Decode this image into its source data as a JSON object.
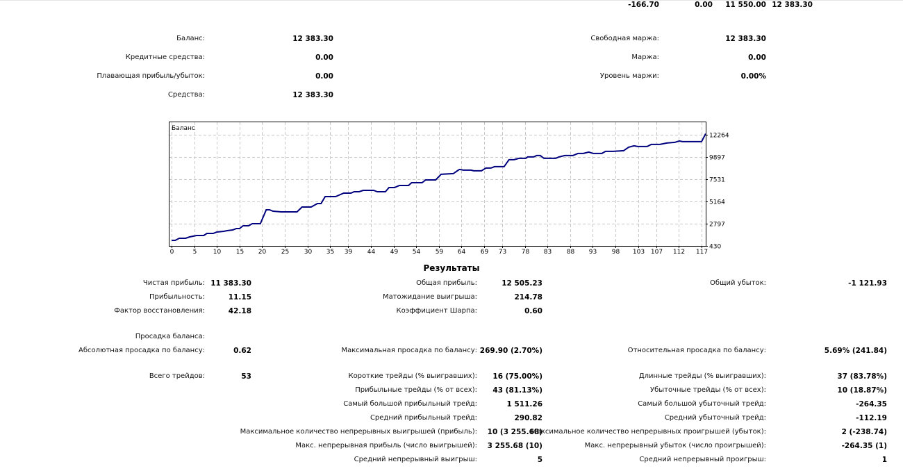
{
  "top_row": [
    "-166.70",
    "0.00",
    "11 550.00",
    "12 383.30"
  ],
  "account": {
    "left": [
      {
        "label": "Баланс:",
        "value": "12 383.30"
      },
      {
        "label": "Кредитные средства:",
        "value": "0.00"
      },
      {
        "label": "Плавающая прибыль/убыток:",
        "value": "0.00"
      },
      {
        "label": "Средства:",
        "value": "12 383.30"
      }
    ],
    "right": [
      {
        "label": "Свободная маржа:",
        "value": "12 383.30"
      },
      {
        "label": "Маржа:",
        "value": "0.00"
      },
      {
        "label": "Уровень маржи:",
        "value": "0.00%"
      }
    ]
  },
  "chart_data": {
    "type": "line",
    "title": "Баланс",
    "xlabel": "",
    "ylabel": "",
    "x_ticks": [
      0,
      5,
      10,
      15,
      20,
      25,
      30,
      35,
      39,
      44,
      49,
      54,
      59,
      64,
      69,
      73,
      78,
      83,
      88,
      93,
      98,
      103,
      107,
      112,
      117
    ],
    "y_ticks": [
      430,
      2797,
      5164,
      7531,
      9897,
      12264
    ],
    "xlim": [
      0,
      118
    ],
    "ylim": [
      430,
      12264
    ],
    "grid": true,
    "line_color": "#00007f",
    "series": [
      {
        "name": "Баланс",
        "points": [
          [
            0,
            1022
          ],
          [
            0.8,
            1022
          ],
          [
            1.7,
            1244
          ],
          [
            3.1,
            1244
          ],
          [
            4.0,
            1392
          ],
          [
            5.5,
            1540
          ],
          [
            7.1,
            1540
          ],
          [
            7.8,
            1762
          ],
          [
            9.2,
            1762
          ],
          [
            10.0,
            1910
          ],
          [
            11.5,
            1984
          ],
          [
            12.3,
            2058
          ],
          [
            13.5,
            2132
          ],
          [
            14.3,
            2280
          ],
          [
            15.0,
            2280
          ],
          [
            15.8,
            2576
          ],
          [
            17.0,
            2576
          ],
          [
            17.8,
            2798
          ],
          [
            19.6,
            2798
          ],
          [
            20.9,
            4278
          ],
          [
            21.6,
            4278
          ],
          [
            22.4,
            4130
          ],
          [
            24.2,
            4056
          ],
          [
            27.7,
            4056
          ],
          [
            28.8,
            4574
          ],
          [
            30.8,
            4574
          ],
          [
            32.2,
            4944
          ],
          [
            33.0,
            4944
          ],
          [
            33.9,
            5684
          ],
          [
            36.2,
            5684
          ],
          [
            38.0,
            6054
          ],
          [
            39.6,
            6054
          ],
          [
            40.3,
            6202
          ],
          [
            41.4,
            6202
          ],
          [
            42.3,
            6350
          ],
          [
            44.6,
            6350
          ],
          [
            45.4,
            6202
          ],
          [
            47.2,
            6202
          ],
          [
            48.0,
            6646
          ],
          [
            49.2,
            6646
          ],
          [
            50.3,
            6868
          ],
          [
            52.3,
            6868
          ],
          [
            53.0,
            7164
          ],
          [
            55.3,
            7164
          ],
          [
            56.1,
            7460
          ],
          [
            58.3,
            7460
          ],
          [
            59.5,
            8052
          ],
          [
            62.2,
            8126
          ],
          [
            63.3,
            8496
          ],
          [
            63.6,
            8570
          ],
          [
            64.4,
            8496
          ],
          [
            66.1,
            8496
          ],
          [
            66.7,
            8422
          ],
          [
            68.4,
            8422
          ],
          [
            69.4,
            8718
          ],
          [
            70.5,
            8718
          ],
          [
            71.3,
            8866
          ],
          [
            73.4,
            8866
          ],
          [
            74.5,
            9606
          ],
          [
            75.6,
            9606
          ],
          [
            76.7,
            9754
          ],
          [
            78.2,
            9754
          ],
          [
            78.6,
            9902
          ],
          [
            79.9,
            9902
          ],
          [
            80.6,
            10050
          ],
          [
            81.4,
            10050
          ],
          [
            82.2,
            9754
          ],
          [
            84.8,
            9754
          ],
          [
            85.5,
            9902
          ],
          [
            86.8,
            10050
          ],
          [
            88.6,
            10050
          ],
          [
            89.7,
            10272
          ],
          [
            90.9,
            10272
          ],
          [
            92.1,
            10420
          ],
          [
            93.1,
            10272
          ],
          [
            95.0,
            10272
          ],
          [
            95.8,
            10494
          ],
          [
            97.5,
            10494
          ],
          [
            99.8,
            10568
          ],
          [
            100.9,
            10938
          ],
          [
            102.1,
            11086
          ],
          [
            102.9,
            11012
          ],
          [
            105.0,
            11012
          ],
          [
            105.9,
            11234
          ],
          [
            107.8,
            11234
          ],
          [
            109.3,
            11382
          ],
          [
            111.1,
            11456
          ],
          [
            112.1,
            11604
          ],
          [
            112.8,
            11530
          ],
          [
            117.0,
            11530
          ],
          [
            117.9,
            12383
          ]
        ]
      }
    ]
  },
  "results": {
    "title": "Результаты",
    "net_profit": {
      "label": "Чистая прибыль:",
      "value": "11 383.30"
    },
    "gross_profit": {
      "label": "Общая прибыль:",
      "value": "12 505.23"
    },
    "gross_loss": {
      "label": "Общий убыток:",
      "value": "-1 121.93"
    },
    "profit_factor": {
      "label": "Прибыльность:",
      "value": "11.15"
    },
    "expected_payoff": {
      "label": "Матожидание выигрыша:",
      "value": "214.78"
    },
    "recovery_factor": {
      "label": "Фактор восстановления:",
      "value": "42.18"
    },
    "sharpe": {
      "label": "Коэффициент Шарпа:",
      "value": "0.60"
    },
    "drawdown_header": "Просадка баланса:",
    "abs_drawdown": {
      "label": "Абсолютная просадка по балансу:",
      "value": "0.62"
    },
    "max_drawdown": {
      "label": "Максимальная просадка по балансу:",
      "value": "269.90 (2.70%)"
    },
    "rel_drawdown": {
      "label": "Относительная просадка по балансу:",
      "value": "5.69% (241.84)"
    },
    "total_trades": {
      "label": "Всего трейдов:",
      "value": "53"
    },
    "short_trades": {
      "label": "Короткие трейды (% выигравших):",
      "value": "16 (75.00%)"
    },
    "long_trades": {
      "label": "Длинные трейды (% выигравших):",
      "value": "37 (83.78%)"
    },
    "profit_trades": {
      "label": "Прибыльные трейды (% от всех):",
      "value": "43 (81.13%)"
    },
    "loss_trades": {
      "label": "Убыточные трейды (% от всех):",
      "value": "10 (18.87%)"
    },
    "largest_profit": {
      "label": "Самый большой прибыльный трейд:",
      "value": "1 511.26"
    },
    "largest_loss": {
      "label": "Самый большой убыточный трейд:",
      "value": "-264.35"
    },
    "avg_profit": {
      "label": "Средний прибыльный трейд:",
      "value": "290.82"
    },
    "avg_loss": {
      "label": "Средний убыточный трейд:",
      "value": "-112.19"
    },
    "max_cons_wins": {
      "label": "Максимальное количество непрерывных выигрышей (прибыль):",
      "value": "10 (3 255.68)"
    },
    "max_cons_losses": {
      "label": "Максимальное количество непрерывных проигрышей (убыток):",
      "value": "2 (-238.74)"
    },
    "max_cons_profit": {
      "label": "Макс. непрерывная прибыль (число выигрышей):",
      "value": "3 255.68 (10)"
    },
    "max_cons_loss": {
      "label": "Макс. непрерывный убыток (число проигрышей):",
      "value": "-264.35 (1)"
    },
    "avg_cons_wins": {
      "label": "Средний непрерывный выигрыш:",
      "value": "5"
    },
    "avg_cons_losses": {
      "label": "Средний непрерывный проигрыш:",
      "value": "1"
    }
  }
}
